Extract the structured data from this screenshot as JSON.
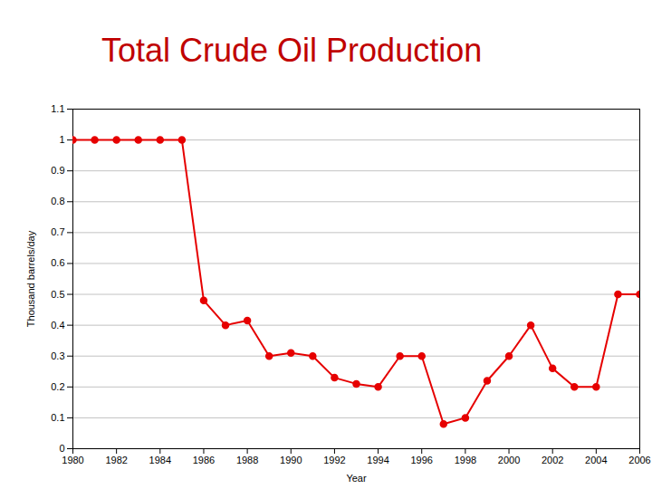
{
  "chart_data": {
    "type": "line",
    "title": "Total Crude Oil Production",
    "x_label": "Year",
    "y_label": "Thousand barrels/day",
    "x": [
      1980,
      1981,
      1982,
      1983,
      1984,
      1985,
      1986,
      1987,
      1988,
      1989,
      1990,
      1991,
      1992,
      1993,
      1994,
      1995,
      1996,
      1997,
      1998,
      1999,
      2000,
      2001,
      2002,
      2003,
      2004,
      2005,
      2006
    ],
    "values": [
      1,
      1,
      1,
      1,
      1,
      1,
      0.48,
      0.4,
      0.415,
      0.3,
      0.31,
      0.3,
      0.23,
      0.21,
      0.2,
      0.3,
      0.3,
      0.08,
      0.1,
      0.22,
      0.3,
      0.4,
      0.26,
      0.2,
      0.2,
      0.5,
      0.5
    ],
    "color": "#e60000",
    "marker": "circle",
    "xlim": [
      1980,
      2006
    ],
    "xticks": [
      1980,
      1982,
      1984,
      1986,
      1988,
      1990,
      1992,
      1994,
      1996,
      1998,
      2000,
      2002,
      2004,
      2006
    ],
    "ylim": [
      0,
      1.1
    ],
    "yticks": [
      0,
      0.1,
      0.2,
      0.3,
      0.4,
      0.5,
      0.6,
      0.7,
      0.8,
      0.9,
      1,
      1.1
    ],
    "grid": true
  }
}
